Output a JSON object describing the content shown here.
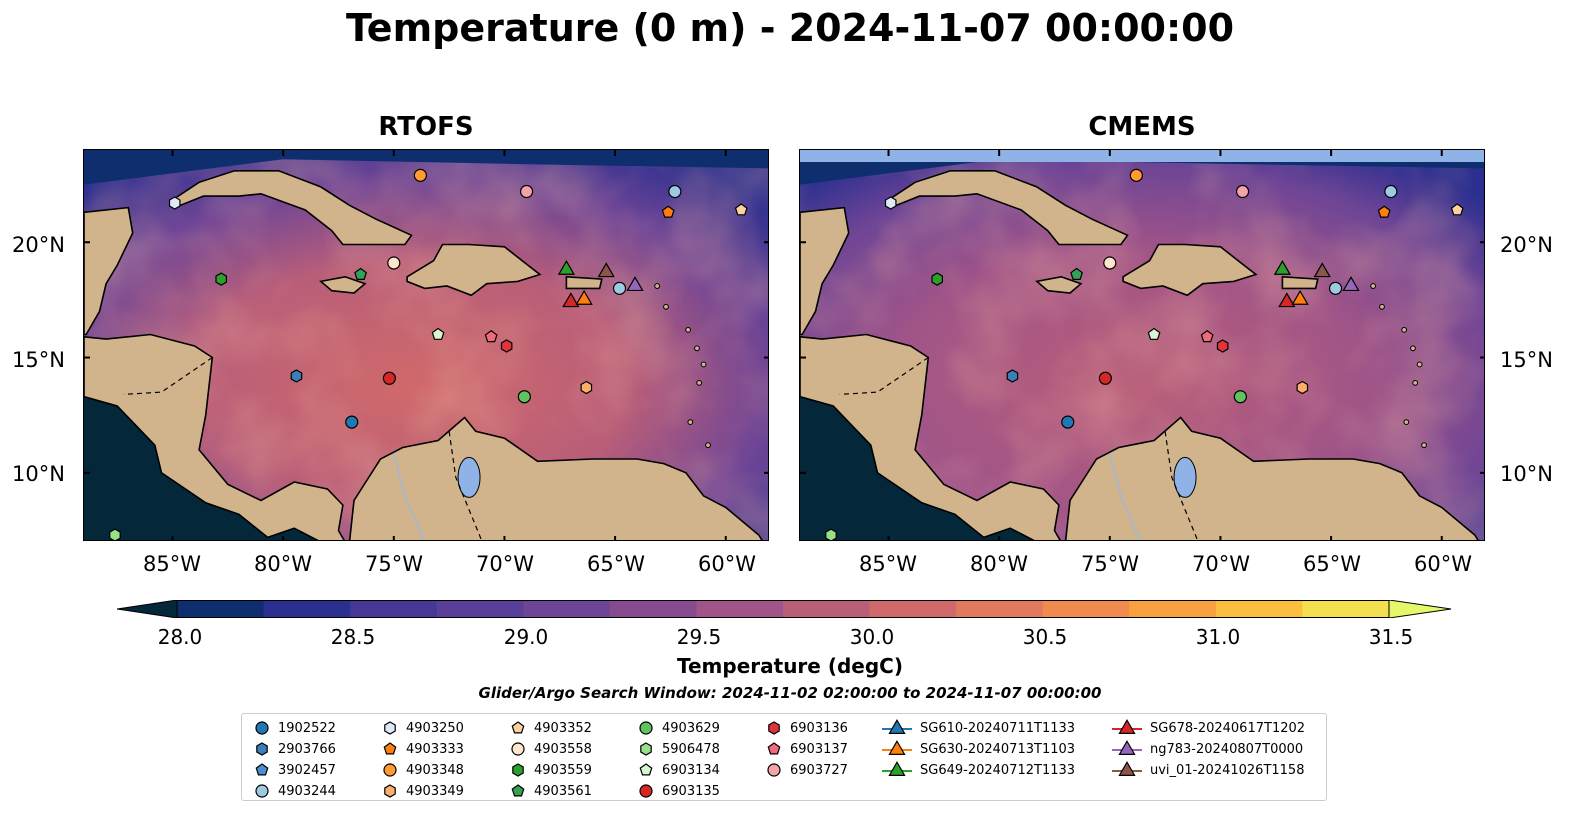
{
  "title": "Temperature (0 m) - 2024-11-07 00:00:00",
  "panels": [
    {
      "title": "RTOFS"
    },
    {
      "title": "CMEMS"
    }
  ],
  "map": {
    "lon_range": [
      -89,
      -58
    ],
    "lat_range": [
      7,
      24
    ],
    "lon_ticks": [
      "85°W",
      "80°W",
      "75°W",
      "70°W",
      "65°W",
      "60°W"
    ],
    "lat_ticks": [
      "20°N",
      "15°N",
      "10°N"
    ],
    "land_color": "#d2b48c",
    "water_color": "#8fb3e6"
  },
  "colorbar": {
    "label": "Temperature (degC)",
    "ticks": [
      "28.0",
      "28.5",
      "29.0",
      "29.5",
      "30.0",
      "30.5",
      "31.0",
      "31.5"
    ],
    "range": [
      27.75,
      31.6
    ],
    "colors": [
      "#04273a",
      "#0f2e6e",
      "#2b2f8f",
      "#453896",
      "#5a3f98",
      "#6e4596",
      "#864b8f",
      "#a05488",
      "#b95e79",
      "#d0696a",
      "#e2795e",
      "#f08a4e",
      "#f9a040",
      "#fbbf40",
      "#f4df50",
      "#e4f86a"
    ]
  },
  "search_window": "Glider/Argo Search Window: 2024-11-02 02:00:00 to 2024-11-07 00:00:00",
  "legend": {
    "items": [
      {
        "label": "1902522",
        "marker": "circle",
        "color": "#1f77b4"
      },
      {
        "label": "2903766",
        "marker": "hexagon",
        "color": "#3b7fb8"
      },
      {
        "label": "3902457",
        "marker": "pentagon",
        "color": "#4a90d0"
      },
      {
        "label": "4903244",
        "marker": "circle",
        "color": "#9ecae1"
      },
      {
        "label": "4903250",
        "marker": "hexagon",
        "color": "#deebf7"
      },
      {
        "label": "4903333",
        "marker": "pentagon",
        "color": "#ff7f0e"
      },
      {
        "label": "4903348",
        "marker": "circle",
        "color": "#ff9b30"
      },
      {
        "label": "4903349",
        "marker": "hexagon",
        "color": "#fdae6b"
      },
      {
        "label": "4903352",
        "marker": "pentagon",
        "color": "#fdd0a2"
      },
      {
        "label": "4903558",
        "marker": "circle",
        "color": "#fde6cc"
      },
      {
        "label": "4903559",
        "marker": "hexagon",
        "color": "#2ca02c"
      },
      {
        "label": "4903561",
        "marker": "pentagon",
        "color": "#31a354"
      },
      {
        "label": "4903629",
        "marker": "circle",
        "color": "#5fc35f"
      },
      {
        "label": "5906478",
        "marker": "hexagon",
        "color": "#98df8a"
      },
      {
        "label": "6903134",
        "marker": "pentagon",
        "color": "#d9f5d3"
      },
      {
        "label": "6903135",
        "marker": "circle",
        "color": "#d62728"
      },
      {
        "label": "6903136",
        "marker": "hexagon",
        "color": "#e0333a"
      },
      {
        "label": "6903137",
        "marker": "pentagon",
        "color": "#f06b7a"
      },
      {
        "label": "6903727",
        "marker": "circle",
        "color": "#f4a3a8"
      },
      {
        "label": "SG610-20240711T1133",
        "marker": "triangle-line",
        "color": "#1f77b4"
      },
      {
        "label": "SG630-20240713T1103",
        "marker": "triangle-line",
        "color": "#ff7f0e"
      },
      {
        "label": "SG649-20240712T1133",
        "marker": "triangle-line",
        "color": "#2ca02c"
      },
      {
        "label": "SG678-20240617T1202",
        "marker": "triangle-line",
        "color": "#d62728"
      },
      {
        "label": "ng783-20240807T0000",
        "marker": "triangle-line",
        "color": "#9467bd"
      },
      {
        "label": "uvi_01-20241026T1158",
        "marker": "triangle-line",
        "color": "#8c564b"
      }
    ]
  },
  "observations": [
    {
      "id": "4903250",
      "lon": -84.9,
      "lat": 21.7
    },
    {
      "id": "4903348",
      "lon": -73.8,
      "lat": 22.9
    },
    {
      "id": "6903727",
      "lon": -69.0,
      "lat": 22.2
    },
    {
      "id": "4903244",
      "lon": -62.3,
      "lat": 22.2
    },
    {
      "id": "4903333",
      "lon": -62.6,
      "lat": 21.3
    },
    {
      "id": "4903352",
      "lon": -59.3,
      "lat": 21.4
    },
    {
      "id": "4903559",
      "lon": -82.8,
      "lat": 18.4
    },
    {
      "id": "4903561",
      "lon": -76.5,
      "lat": 18.6
    },
    {
      "id": "4903558",
      "lon": -75.0,
      "lat": 19.1
    },
    {
      "id": "SG649-20240712T1133",
      "lon": -67.2,
      "lat": 18.8
    },
    {
      "id": "uvi_01-20241026T1158",
      "lon": -65.4,
      "lat": 18.7
    },
    {
      "id": "SG678-20240617T1202",
      "lon": -67.0,
      "lat": 17.4
    },
    {
      "id": "SG630-20240713T1103",
      "lon": -66.4,
      "lat": 17.5
    },
    {
      "id": "4903244",
      "lon": -64.8,
      "lat": 18.0
    },
    {
      "id": "ng783-20240807T0000",
      "lon": -64.1,
      "lat": 18.1
    },
    {
      "id": "6903134",
      "lon": -73.0,
      "lat": 16.0
    },
    {
      "id": "6903137",
      "lon": -70.6,
      "lat": 15.9
    },
    {
      "id": "6903136",
      "lon": -69.9,
      "lat": 15.5
    },
    {
      "id": "2903766",
      "lon": -79.4,
      "lat": 14.2
    },
    {
      "id": "6903135",
      "lon": -75.2,
      "lat": 14.1
    },
    {
      "id": "4903349",
      "lon": -66.3,
      "lat": 13.7
    },
    {
      "id": "4903629",
      "lon": -69.1,
      "lat": 13.3
    },
    {
      "id": "1902522",
      "lon": -76.9,
      "lat": 12.2
    },
    {
      "id": "5906478",
      "lon": -87.6,
      "lat": 7.3
    }
  ]
}
